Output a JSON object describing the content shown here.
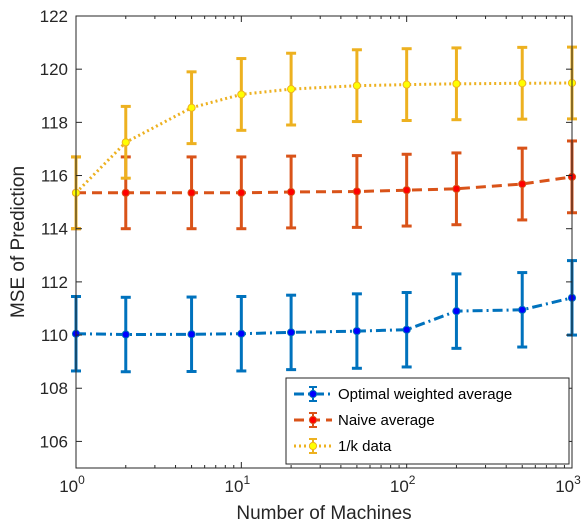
{
  "chart_data": {
    "type": "line",
    "title": "",
    "xlabel": "Number of Machines",
    "ylabel": "MSE of Prediction",
    "x_scale": "log",
    "xlim": [
      1,
      1000
    ],
    "ylim": [
      105,
      122
    ],
    "x_ticks": [
      1,
      10,
      100,
      1000
    ],
    "x_tick_labels": [
      {
        "base": "10",
        "exp": "0"
      },
      {
        "base": "10",
        "exp": "1"
      },
      {
        "base": "10",
        "exp": "2"
      },
      {
        "base": "10",
        "exp": "3"
      }
    ],
    "y_ticks": [
      106,
      108,
      110,
      112,
      114,
      116,
      118,
      120,
      122
    ],
    "y_tick_labels": [
      "106",
      "108",
      "110",
      "112",
      "114",
      "116",
      "118",
      "120",
      "122"
    ],
    "grid": false,
    "legend_position": "bottom-right",
    "x": [
      1,
      2,
      5,
      10,
      20,
      50,
      100,
      200,
      500,
      1000
    ],
    "series": [
      {
        "name": "Optimal weighted average",
        "color": "#0072BD",
        "marker_color": "#0000FF",
        "line_style": "dash-dot",
        "values": [
          110.05,
          110.02,
          110.03,
          110.05,
          110.1,
          110.15,
          110.2,
          110.9,
          110.95,
          111.4
        ],
        "errors": [
          1.4,
          1.4,
          1.4,
          1.4,
          1.4,
          1.4,
          1.4,
          1.4,
          1.4,
          1.4
        ]
      },
      {
        "name": "Naive average",
        "color": "#D95319",
        "marker_color": "#FF0000",
        "line_style": "dashed",
        "values": [
          115.35,
          115.35,
          115.35,
          115.35,
          115.38,
          115.4,
          115.45,
          115.5,
          115.68,
          115.95
        ],
        "errors": [
          1.35,
          1.35,
          1.35,
          1.35,
          1.35,
          1.35,
          1.35,
          1.35,
          1.35,
          1.35
        ]
      },
      {
        "name": "1/k data",
        "color": "#EDB120",
        "marker_color": "#FFFF00",
        "line_style": "dotted",
        "values": [
          115.35,
          117.25,
          118.55,
          119.05,
          119.25,
          119.38,
          119.42,
          119.45,
          119.47,
          119.48
        ],
        "errors": [
          1.35,
          1.35,
          1.35,
          1.35,
          1.35,
          1.35,
          1.35,
          1.35,
          1.35,
          1.35
        ]
      }
    ]
  }
}
